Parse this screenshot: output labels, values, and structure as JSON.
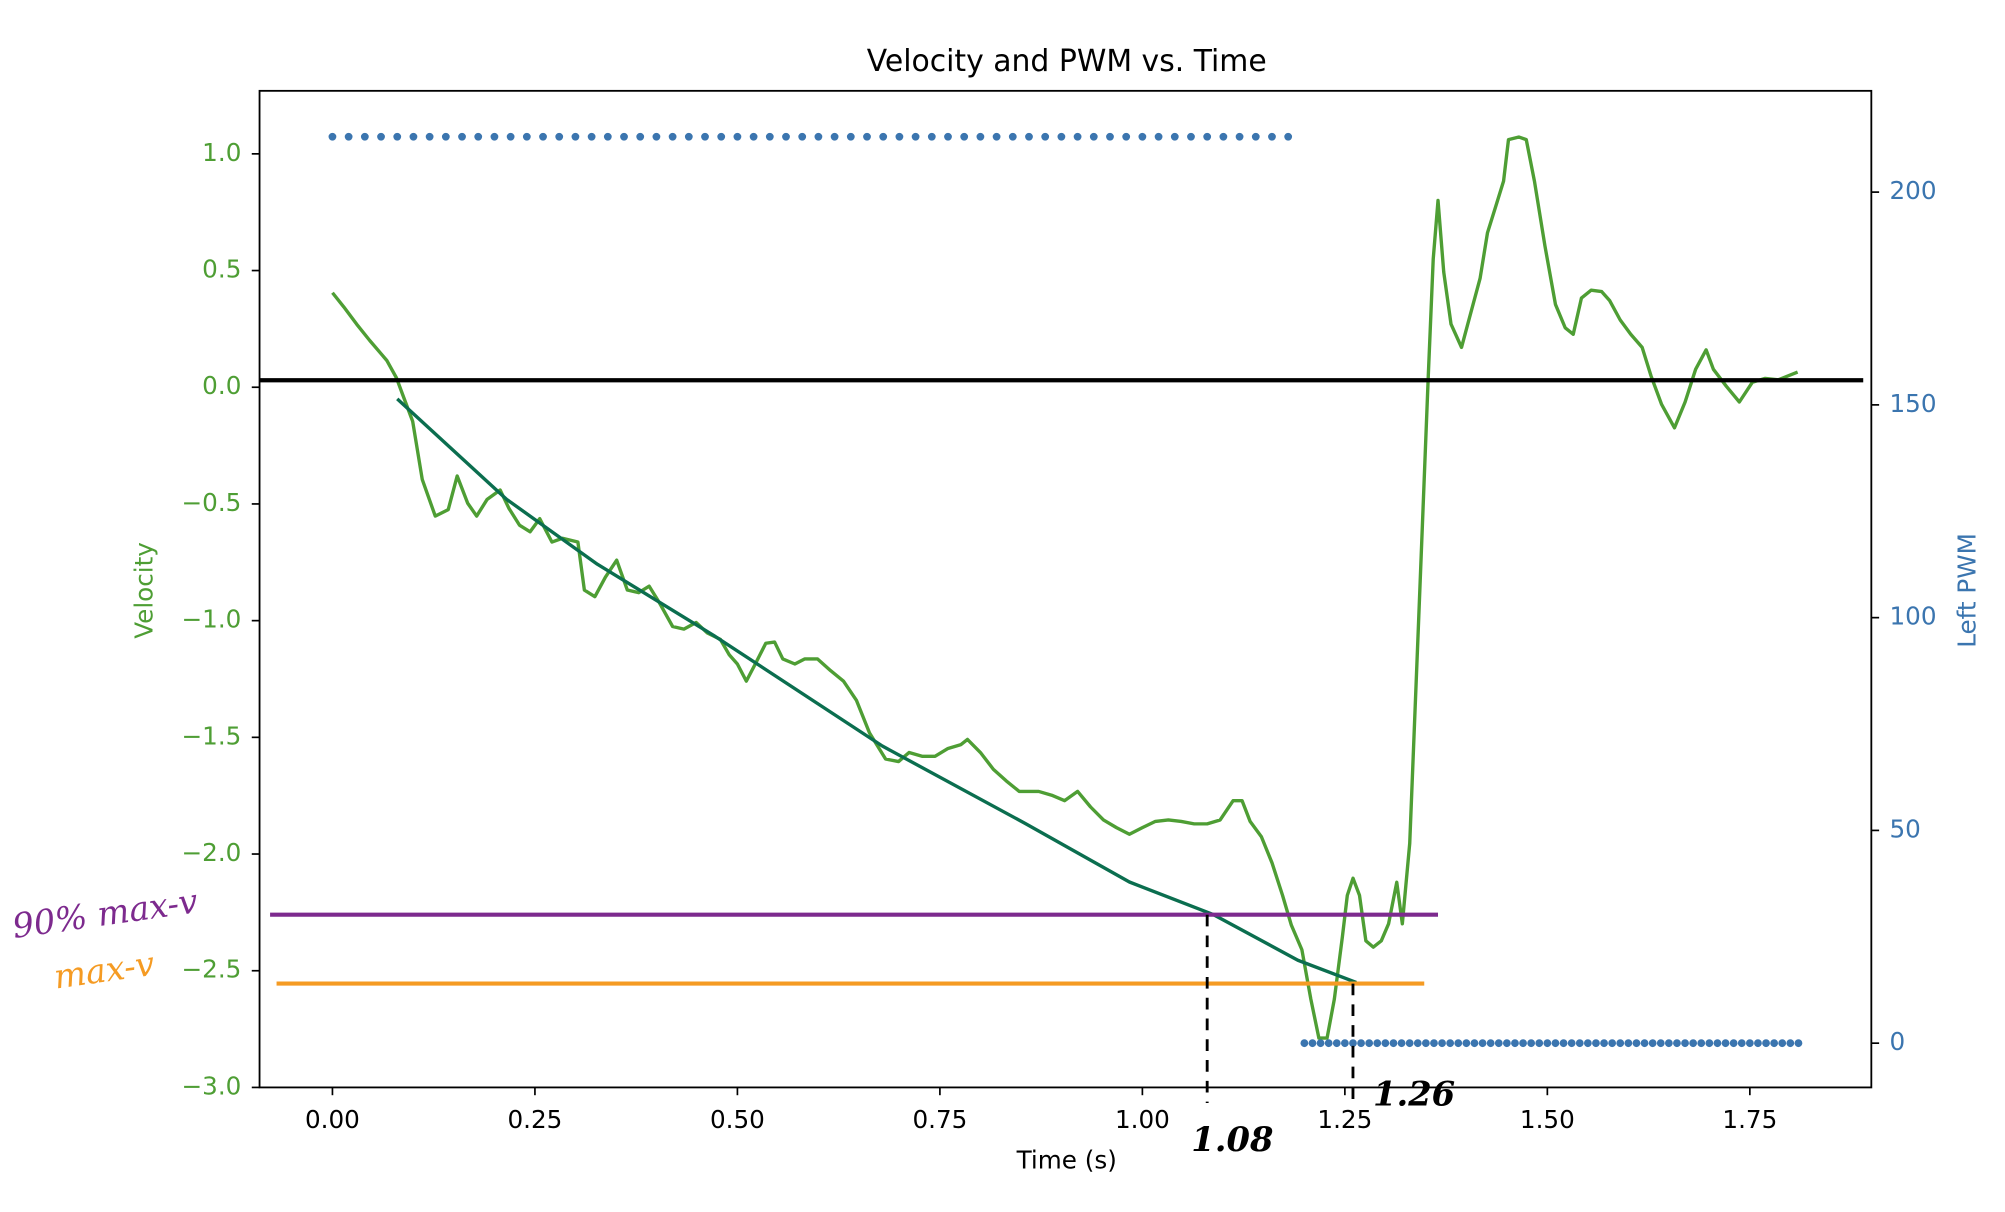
{
  "chart_data": {
    "type": "line",
    "title": "Velocity and PWM vs. Time",
    "x_label": "Time (s)",
    "y_label": "Velocity",
    "y2_label": "Left PWM",
    "xlim": [
      -0.09,
      1.9
    ],
    "ylim": [
      -3.0,
      1.27
    ],
    "y2lim": [
      -10.4,
      223.8
    ],
    "xticks": [
      {
        "value": 0,
        "label": "0.00"
      },
      {
        "value": 0.25,
        "label": "0.25"
      },
      {
        "value": 0.5,
        "label": "0.50"
      },
      {
        "value": 0.75,
        "label": "0.75"
      },
      {
        "value": 1.0,
        "label": "1.00"
      },
      {
        "value": 1.25,
        "label": "1.25"
      },
      {
        "value": 1.5,
        "label": "1.50"
      },
      {
        "value": 1.75,
        "label": "1.75"
      }
    ],
    "yticks": [
      {
        "value": 1.0,
        "label": "1.0"
      },
      {
        "value": 0.5,
        "label": "0.5"
      },
      {
        "value": 0,
        "label": "0.0"
      },
      {
        "value": -0.5,
        "label": "−0.5"
      },
      {
        "value": -1.0,
        "label": "−1.0"
      },
      {
        "value": -1.5,
        "label": "−1.5"
      },
      {
        "value": -2.0,
        "label": "−2.0"
      },
      {
        "value": -2.5,
        "label": "−2.5"
      },
      {
        "value": -3.0,
        "label": "−3.0"
      }
    ],
    "y2ticks": [
      0,
      50,
      100,
      150,
      200
    ],
    "y_color": "#4e9e34",
    "y2_color": "#3b75af",
    "grid": false,
    "series": [
      {
        "type": "line",
        "color": "#4e9e34",
        "x": [
          0.0,
          0.014,
          0.03,
          0.046,
          0.067,
          0.079,
          0.087,
          0.099,
          0.111,
          0.127,
          0.143,
          0.154,
          0.167,
          0.178,
          0.191,
          0.207,
          0.218,
          0.231,
          0.244,
          0.256,
          0.271,
          0.284,
          0.303,
          0.311,
          0.324,
          0.337,
          0.351,
          0.364,
          0.378,
          0.391,
          0.404,
          0.42,
          0.434,
          0.449,
          0.463,
          0.479,
          0.49,
          0.5,
          0.511,
          0.522,
          0.535,
          0.546,
          0.556,
          0.571,
          0.583,
          0.599,
          0.615,
          0.631,
          0.647,
          0.663,
          0.683,
          0.699,
          0.712,
          0.728,
          0.744,
          0.76,
          0.776,
          0.784,
          0.8,
          0.816,
          0.832,
          0.848,
          0.872,
          0.888,
          0.904,
          0.92,
          0.936,
          0.952,
          0.968,
          0.984,
          1.0,
          1.016,
          1.032,
          1.048,
          1.064,
          1.08,
          1.096,
          1.112,
          1.123,
          1.133,
          1.147,
          1.16,
          1.173,
          1.184,
          1.197,
          1.208,
          1.218,
          1.228,
          1.237,
          1.247,
          1.253,
          1.26,
          1.268,
          1.276,
          1.285,
          1.295,
          1.304,
          1.314,
          1.321,
          1.33,
          1.341,
          1.353,
          1.359,
          1.365,
          1.372,
          1.381,
          1.394,
          1.404,
          1.417,
          1.426,
          1.436,
          1.446,
          1.452,
          1.465,
          1.474,
          1.484,
          1.497,
          1.51,
          1.522,
          1.532,
          1.542,
          1.554,
          1.567,
          1.577,
          1.59,
          1.603,
          1.617,
          1.628,
          1.641,
          1.657,
          1.67,
          1.683,
          1.696,
          1.705,
          1.721,
          1.737,
          1.753,
          1.769,
          1.785,
          1.809
        ],
        "values": [
          0.405,
          0.344,
          0.27,
          0.2,
          0.115,
          0.04,
          -0.035,
          -0.146,
          -0.396,
          -0.552,
          -0.524,
          -0.38,
          -0.497,
          -0.552,
          -0.48,
          -0.44,
          -0.519,
          -0.591,
          -0.619,
          -0.563,
          -0.663,
          -0.647,
          -0.663,
          -0.869,
          -0.897,
          -0.814,
          -0.741,
          -0.869,
          -0.88,
          -0.852,
          -0.925,
          -1.025,
          -1.036,
          -1.008,
          -1.053,
          -1.08,
          -1.147,
          -1.186,
          -1.259,
          -1.186,
          -1.097,
          -1.092,
          -1.164,
          -1.186,
          -1.164,
          -1.164,
          -1.214,
          -1.259,
          -1.342,
          -1.481,
          -1.593,
          -1.604,
          -1.565,
          -1.581,
          -1.581,
          -1.548,
          -1.531,
          -1.509,
          -1.565,
          -1.637,
          -1.687,
          -1.732,
          -1.732,
          -1.748,
          -1.771,
          -1.732,
          -1.798,
          -1.854,
          -1.887,
          -1.915,
          -1.887,
          -1.86,
          -1.854,
          -1.86,
          -1.871,
          -1.871,
          -1.854,
          -1.771,
          -1.771,
          -1.86,
          -1.926,
          -2.038,
          -2.177,
          -2.305,
          -2.41,
          -2.622,
          -2.789,
          -2.789,
          -2.622,
          -2.355,
          -2.177,
          -2.104,
          -2.177,
          -2.372,
          -2.399,
          -2.372,
          -2.299,
          -2.121,
          -2.299,
          -1.954,
          -1.008,
          0.049,
          0.549,
          0.8,
          0.494,
          0.271,
          0.171,
          0.299,
          0.466,
          0.661,
          0.772,
          0.883,
          1.061,
          1.072,
          1.061,
          0.883,
          0.605,
          0.355,
          0.255,
          0.227,
          0.382,
          0.416,
          0.41,
          0.371,
          0.288,
          0.227,
          0.171,
          0.049,
          -0.074,
          -0.174,
          -0.063,
          0.077,
          0.16,
          0.077,
          0.004,
          -0.063,
          0.021,
          0.038,
          0.032,
          0.065
        ]
      },
      {
        "type": "line",
        "color": "#0b6e4f",
        "x": [
          0.08,
          0.119,
          0.215,
          0.327,
          0.471,
          0.679,
          0.856,
          0.984,
          1.088,
          1.192,
          1.264
        ],
        "values": [
          -0.05,
          -0.174,
          -0.48,
          -0.758,
          -1.064,
          -1.537,
          -1.87,
          -2.12,
          -2.26,
          -2.455,
          -2.55
        ]
      },
      {
        "type": "scatter",
        "color": "#3b75af",
        "axis": "y2",
        "x": [
          0.0,
          0.02,
          0.04,
          0.06,
          0.08,
          0.1,
          0.12,
          0.14,
          0.16,
          0.18,
          0.2,
          0.22,
          0.24,
          0.26,
          0.28,
          0.3,
          0.32,
          0.34,
          0.36,
          0.38,
          0.4,
          0.42,
          0.44,
          0.46,
          0.48,
          0.5,
          0.52,
          0.54,
          0.56,
          0.58,
          0.6,
          0.62,
          0.64,
          0.66,
          0.68,
          0.7,
          0.72,
          0.74,
          0.76,
          0.78,
          0.8,
          0.82,
          0.84,
          0.86,
          0.88,
          0.9,
          0.92,
          0.94,
          0.96,
          0.98,
          1.0,
          1.02,
          1.04,
          1.06,
          1.08,
          1.1,
          1.12,
          1.14,
          1.16,
          1.18,
          1.2,
          1.21,
          1.22,
          1.23,
          1.24,
          1.25,
          1.26,
          1.27,
          1.28,
          1.29,
          1.3,
          1.31,
          1.32,
          1.33,
          1.34,
          1.35,
          1.36,
          1.37,
          1.38,
          1.39,
          1.4,
          1.41,
          1.42,
          1.43,
          1.44,
          1.45,
          1.46,
          1.47,
          1.48,
          1.49,
          1.5,
          1.51,
          1.52,
          1.53,
          1.54,
          1.55,
          1.56,
          1.57,
          1.58,
          1.59,
          1.6,
          1.61,
          1.62,
          1.63,
          1.64,
          1.65,
          1.66,
          1.67,
          1.68,
          1.69,
          1.7,
          1.71,
          1.72,
          1.73,
          1.74,
          1.75,
          1.76,
          1.77,
          1.78,
          1.79,
          1.8,
          1.81
        ],
        "values": [
          213,
          213,
          213,
          213,
          213,
          213,
          213,
          213,
          213,
          213,
          213,
          213,
          213,
          213,
          213,
          213,
          213,
          213,
          213,
          213,
          213,
          213,
          213,
          213,
          213,
          213,
          213,
          213,
          213,
          213,
          213,
          213,
          213,
          213,
          213,
          213,
          213,
          213,
          213,
          213,
          213,
          213,
          213,
          213,
          213,
          213,
          213,
          213,
          213,
          213,
          213,
          213,
          213,
          213,
          213,
          213,
          213,
          213,
          213,
          213,
          0,
          0,
          0,
          0,
          0,
          0,
          0,
          0,
          0,
          0,
          0,
          0,
          0,
          0,
          0,
          0,
          0,
          0,
          0,
          0,
          0,
          0,
          0,
          0,
          0,
          0,
          0,
          0,
          0,
          0,
          0,
          0,
          0,
          0,
          0,
          0,
          0,
          0,
          0,
          0,
          0,
          0,
          0,
          0,
          0,
          0,
          0,
          0,
          0,
          0,
          0,
          0,
          0,
          0,
          0,
          0,
          0,
          0,
          0,
          0,
          0,
          0
        ]
      }
    ],
    "hlines": [
      {
        "y": 0.03,
        "xmin": -0.09,
        "xmax": 1.89,
        "color": "#000000"
      },
      {
        "y": -2.26,
        "xmin": -0.077,
        "xmax": 1.365,
        "color": "#7d2a8e",
        "label": "90% max-v"
      },
      {
        "y": -2.555,
        "xmin": -0.069,
        "xmax": 1.348,
        "color": "#f59b23",
        "label": "max-v"
      }
    ],
    "vlines": [
      {
        "x": 1.08,
        "ymin": -2.26,
        "label": "1.08"
      },
      {
        "x": 1.26,
        "ymin": -2.555,
        "label": "1.26"
      }
    ]
  }
}
